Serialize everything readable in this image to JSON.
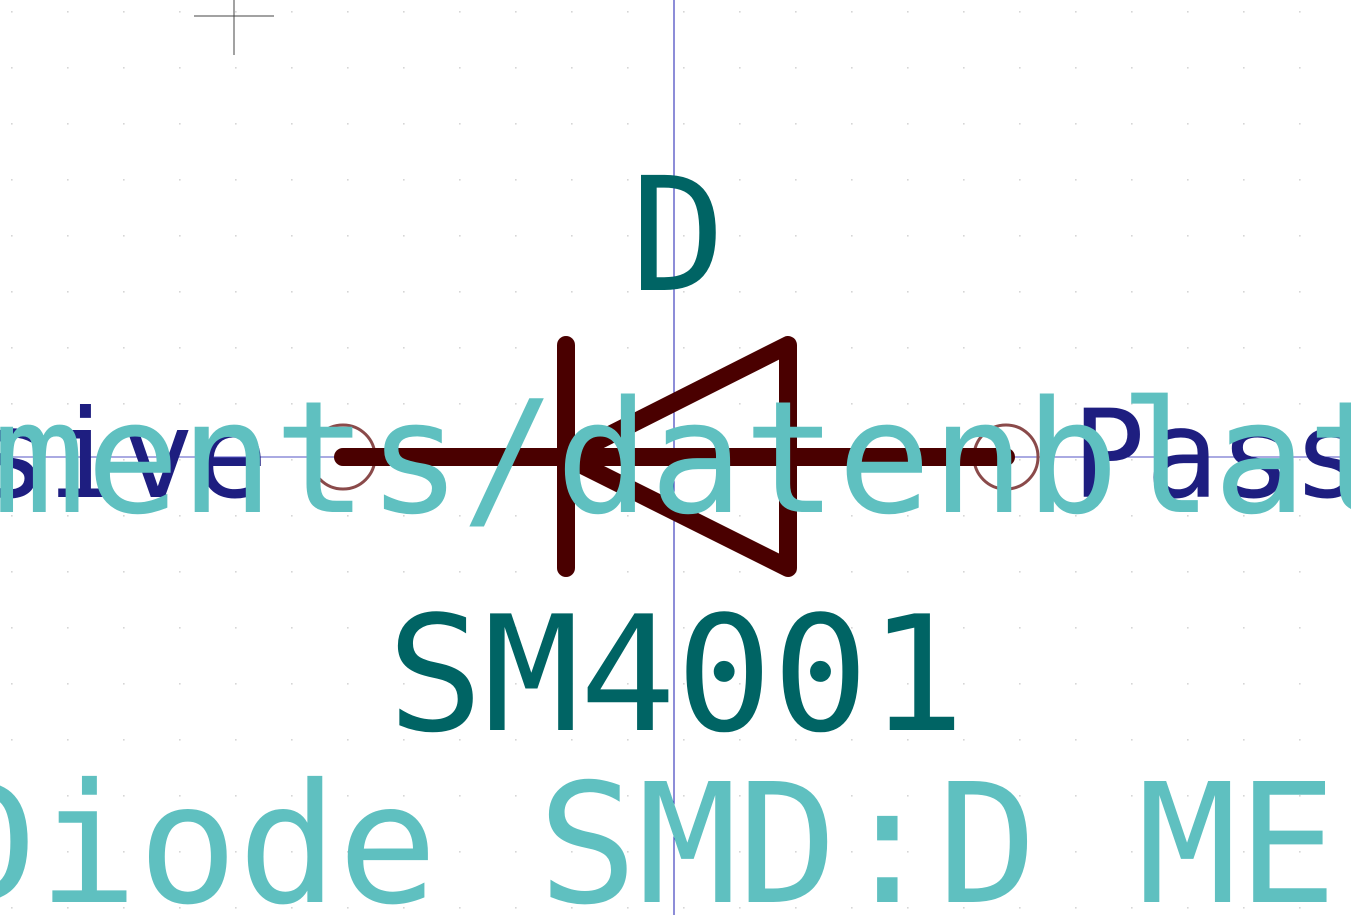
{
  "editor": {
    "view": "symbol-editor-canvas",
    "grid": true,
    "colors": {
      "background": "#ffffff",
      "grid_dot": "#d6d6d6",
      "axis_line": "#1b1bb0",
      "origin_cross": "#444444",
      "symbol_body": "#4a0000",
      "pin_circle": "#8a4a4a",
      "reference": "#006464",
      "value": "#006464",
      "field_hidden": "#5fc0c0",
      "pin_type": "#1e1e80"
    }
  },
  "symbol": {
    "reference": "D",
    "value": "SM4001",
    "footprint": "Diode_SMD:D_MEL",
    "datasheet": "ments/datenblatt",
    "pin_type_left": "sive",
    "pin_type_right": "Pass",
    "body_icon": "diode-icon",
    "pin_icon": "pin-circle-icon",
    "origin_icon": "crosshair-icon"
  }
}
